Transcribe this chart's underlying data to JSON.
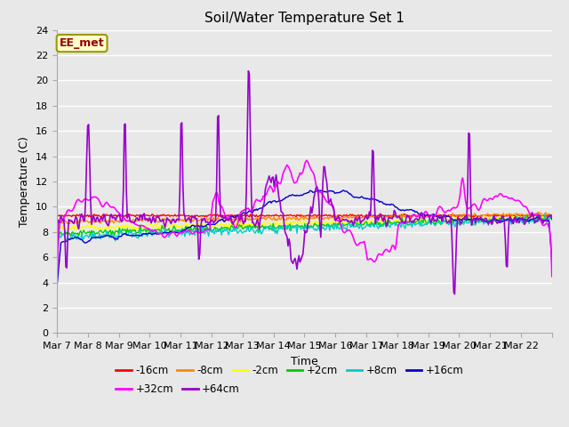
{
  "title": "Soil/Water Temperature Set 1",
  "xlabel": "Time",
  "ylabel": "Temperature (C)",
  "ylim": [
    0,
    24
  ],
  "yticks": [
    0,
    2,
    4,
    6,
    8,
    10,
    12,
    14,
    16,
    18,
    20,
    22,
    24
  ],
  "bg_color": "#e8e8e8",
  "plot_bg_color": "#e8e8e8",
  "annotation_text": "EE_met",
  "annotation_bg": "#ffffcc",
  "annotation_edge": "#999900",
  "annotation_text_color": "#990000",
  "series_order": [
    "-16cm",
    "-8cm",
    "-2cm",
    "+2cm",
    "+8cm",
    "+16cm",
    "+32cm",
    "+64cm"
  ],
  "series_colors": [
    "#ff0000",
    "#ff8800",
    "#ffff00",
    "#00cc00",
    "#00cccc",
    "#0000cc",
    "#ff00ff",
    "#9900cc"
  ],
  "linewidth": 1.0,
  "xticklabels": [
    "Mar 7",
    "Mar 8",
    "Mar 9",
    "Mar 10",
    "Mar 11",
    "Mar 12",
    "Mar 13",
    "Mar 14",
    "Mar 15",
    "Mar 16",
    "Mar 17",
    "Mar 18",
    "Mar 19",
    "Mar 20",
    "Mar 21",
    "Mar 22"
  ],
  "num_days": 16,
  "pts": 500
}
